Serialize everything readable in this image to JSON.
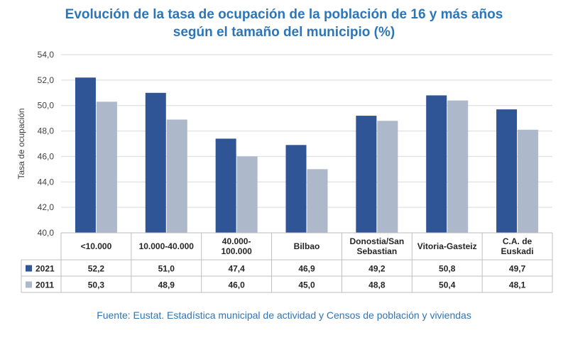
{
  "title_lines": [
    "Evolución de la tasa de ocupación de la población de 16 y más años",
    "según el tamaño del municipio (%)"
  ],
  "source": "Fuente: Eustat. Estadística municipal de actividad y Censos de población y viviendas",
  "colors": {
    "2021": "#2f5597",
    "2011": "#adb9ca",
    "title": "#2e75b6",
    "grid": "#d9d9d9"
  },
  "chart_data": {
    "type": "bar",
    "ylabel": "Tasa de ocupación",
    "ylim": [
      40,
      54
    ],
    "yticks": [
      "40,0",
      "42,0",
      "44,0",
      "46,0",
      "48,0",
      "50,0",
      "52,0",
      "54,0"
    ],
    "grid": true,
    "legend": "data-table",
    "categories": [
      [
        "<10.000"
      ],
      [
        "10.000-40.000"
      ],
      [
        "40.000-",
        "100.000"
      ],
      [
        "Bilbao"
      ],
      [
        "Donostia/San",
        "Sebastian"
      ],
      [
        "Vitoria-Gasteiz"
      ],
      [
        "C.A. de",
        "Euskadi"
      ]
    ],
    "series": [
      {
        "name": "2021",
        "values": [
          52.2,
          51.0,
          47.4,
          46.9,
          49.2,
          50.8,
          49.7
        ],
        "labels": [
          "52,2",
          "51,0",
          "47,4",
          "46,9",
          "49,2",
          "50,8",
          "49,7"
        ]
      },
      {
        "name": "2011",
        "values": [
          50.3,
          48.9,
          46.0,
          45.0,
          48.8,
          50.4,
          48.1
        ],
        "labels": [
          "50,3",
          "48,9",
          "46,0",
          "45,0",
          "48,8",
          "50,4",
          "48,1"
        ]
      }
    ]
  }
}
